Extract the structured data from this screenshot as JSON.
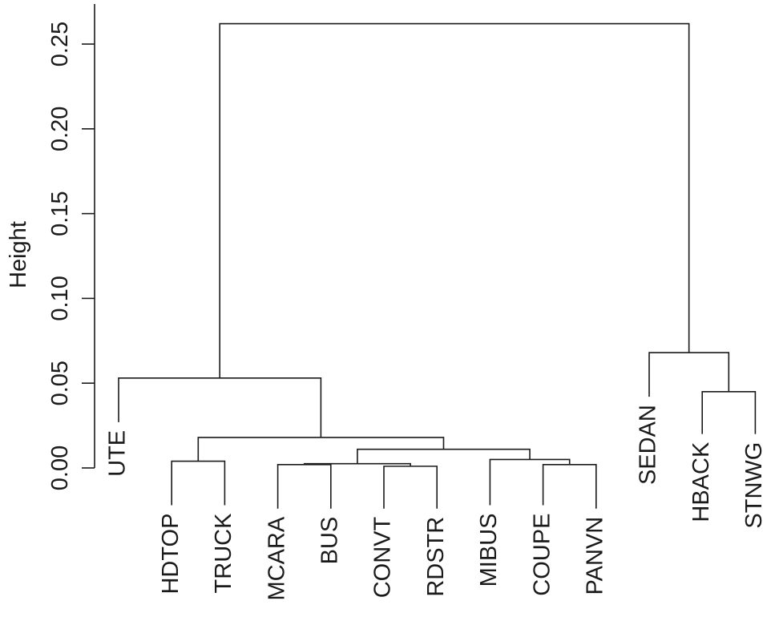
{
  "chart_data": {
    "type": "dendrogram",
    "ylabel": "Height",
    "ylim": [
      0.0,
      0.26
    ],
    "yticks": [
      {
        "value": 0.0,
        "label": "0.00"
      },
      {
        "value": 0.05,
        "label": "0.05"
      },
      {
        "value": 0.1,
        "label": "0.10"
      },
      {
        "value": 0.15,
        "label": "0.15"
      },
      {
        "value": 0.2,
        "label": "0.20"
      },
      {
        "value": 0.25,
        "label": "0.25"
      }
    ],
    "leaves": [
      "UTE",
      "HDTOP",
      "TRUCK",
      "MCARA",
      "BUS",
      "CONVT",
      "RDSTR",
      "MIBUS",
      "COUPE",
      "PANVN",
      "SEDAN",
      "HBACK",
      "STNWG"
    ],
    "merges": [
      {
        "left": "CONVT",
        "right": "RDSTR",
        "height": 0.001
      },
      {
        "left": "MCARA",
        "right": "BUS",
        "height": 0.002
      },
      {
        "left": "COUPE",
        "right": "PANVN",
        "height": 0.002
      },
      {
        "left": "HDTOP",
        "right": "TRUCK",
        "height": 0.004
      },
      {
        "left": "MCARA+BUS",
        "right": "CONVT+RDSTR",
        "height": 0.0025
      },
      {
        "left": "MIBUS",
        "right": "COUPE+PANVN",
        "height": 0.005
      },
      {
        "left": "MCARA+BUS+CONVT+RDSTR",
        "right": "MIBUS+COUPE+PANVN",
        "height": 0.011
      },
      {
        "left": "HDTOP+TRUCK",
        "right": "MCARA+BUS+CONVT+RDSTR+MIBUS+COUPE+PANVN",
        "height": 0.018
      },
      {
        "left": "UTE",
        "right": "HDTOP+TRUCK+MCARA+BUS+CONVT+RDSTR+MIBUS+COUPE+PANVN",
        "height": 0.053
      },
      {
        "left": "HBACK",
        "right": "STNWG",
        "height": 0.045
      },
      {
        "left": "SEDAN",
        "right": "HBACK+STNWG",
        "height": 0.068
      },
      {
        "left": "UTE+HDTOP+TRUCK+MCARA+BUS+CONVT+RDSTR+MIBUS+COUPE+PANVN",
        "right": "SEDAN+HBACK+STNWG",
        "height": 0.262
      }
    ],
    "leaf_heights": {
      "UTE": 0.027,
      "HDTOP": -0.022,
      "TRUCK": -0.022,
      "MCARA": -0.024,
      "BUS": -0.024,
      "CONVT": -0.024,
      "RDSTR": -0.024,
      "MIBUS": -0.022,
      "COUPE": -0.022,
      "PANVN": -0.024,
      "SEDAN": 0.042,
      "HBACK": 0.02,
      "STNWG": 0.02
    }
  }
}
